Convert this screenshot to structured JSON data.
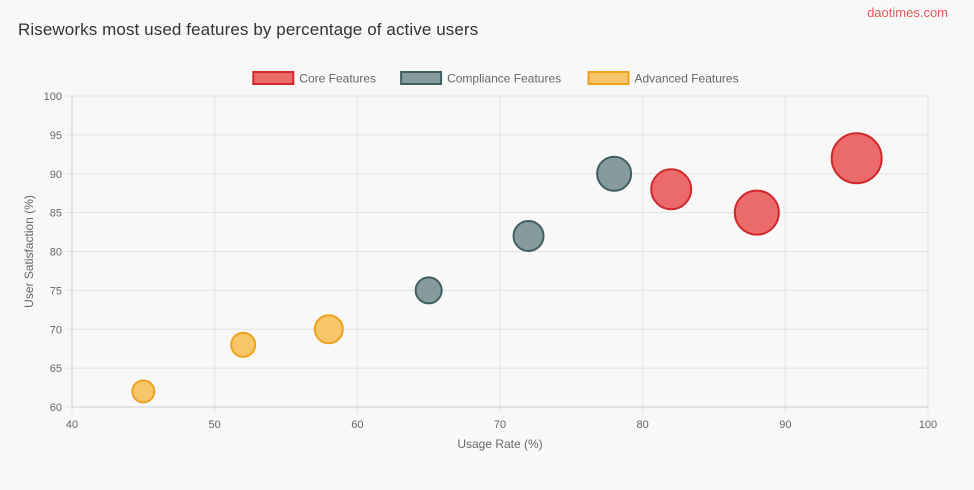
{
  "header": {
    "title": "Riseworks most used features by percentage of active users",
    "brand": "daotimes.com"
  },
  "chart_data": {
    "type": "bubble",
    "title": "Riseworks most used features by percentage of active users",
    "xlabel": "Usage Rate (%)",
    "ylabel": "User Satisfaction (%)",
    "xlim": [
      40,
      100
    ],
    "ylim": [
      60,
      100
    ],
    "xticks": [
      40,
      50,
      60,
      70,
      80,
      90,
      100
    ],
    "yticks": [
      60,
      65,
      70,
      75,
      80,
      85,
      90,
      95,
      100
    ],
    "grid": true,
    "legend_position": "top",
    "series": [
      {
        "name": "Core Features",
        "fill": "#eb6b6b",
        "stroke": "#d0282c",
        "points": [
          {
            "x": 95,
            "y": 92,
            "r": 25
          },
          {
            "x": 88,
            "y": 85,
            "r": 22
          },
          {
            "x": 82,
            "y": 88,
            "r": 20
          }
        ]
      },
      {
        "name": "Compliance Features",
        "fill": "#869c9c",
        "stroke": "#3f5f62",
        "points": [
          {
            "x": 78,
            "y": 90,
            "r": 17
          },
          {
            "x": 72,
            "y": 82,
            "r": 15
          },
          {
            "x": 65,
            "y": 75,
            "r": 13
          }
        ]
      },
      {
        "name": "Advanced Features",
        "fill": "#f7c66a",
        "stroke": "#eda21d",
        "points": [
          {
            "x": 58,
            "y": 70,
            "r": 14
          },
          {
            "x": 52,
            "y": 68,
            "r": 12
          },
          {
            "x": 45,
            "y": 62,
            "r": 11
          }
        ]
      }
    ]
  }
}
